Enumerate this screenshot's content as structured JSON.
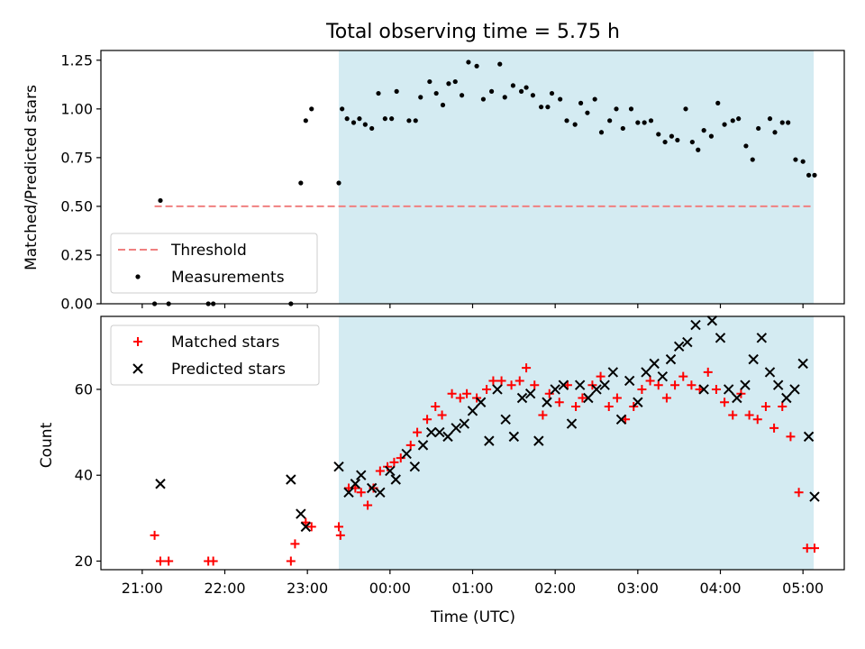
{
  "chart_data": [
    {
      "type": "scatter",
      "title": "Total observing time = 5.75 h",
      "ylabel": "Matched/Predicted stars",
      "xlabel": "",
      "x_unit": "hours since 00:00 UTC (negative = previous evening)",
      "ylim": [
        0,
        1.3
      ],
      "yticks": [
        0.0,
        0.25,
        0.5,
        0.75,
        1.0,
        1.25
      ],
      "ytick_labels": [
        "0.00",
        "0.25",
        "0.50",
        "0.75",
        "1.00",
        "1.25"
      ],
      "shaded_span": [
        -0.62,
        5.13
      ],
      "threshold": {
        "name": "Threshold",
        "value": 0.5,
        "x_range": [
          -2.85,
          5.13
        ],
        "color": "#f08080"
      },
      "legend": {
        "position": "lower-left",
        "entries": [
          "Threshold",
          "Measurements"
        ]
      },
      "series": [
        {
          "name": "Measurements",
          "color": "#000000",
          "x": [
            -2.85,
            -2.78,
            -2.68,
            -2.2,
            -2.14,
            -1.2,
            -1.08,
            -1.02,
            -0.95,
            -0.62,
            -0.58,
            -0.52,
            -0.44,
            -0.37,
            -0.3,
            -0.22,
            -0.14,
            -0.06,
            0.02,
            0.08,
            0.23,
            0.31,
            0.37,
            0.48,
            0.56,
            0.64,
            0.71,
            0.79,
            0.87,
            0.95,
            1.05,
            1.13,
            1.23,
            1.33,
            1.39,
            1.49,
            1.59,
            1.65,
            1.73,
            1.83,
            1.91,
            1.96,
            2.06,
            2.14,
            2.24,
            2.31,
            2.39,
            2.48,
            2.56,
            2.66,
            2.74,
            2.82,
            2.92,
            3.0,
            3.08,
            3.16,
            3.25,
            3.33,
            3.41,
            3.48,
            3.58,
            3.66,
            3.73,
            3.8,
            3.89,
            3.97,
            4.05,
            4.15,
            4.22,
            4.31,
            4.39,
            4.46,
            4.6,
            4.66,
            4.75,
            4.82,
            4.91,
            5.0,
            5.07,
            5.14
          ],
          "y": [
            0.0,
            0.53,
            0.0,
            0.0,
            0.0,
            0.0,
            0.62,
            0.94,
            1.0,
            0.62,
            1.0,
            0.95,
            0.93,
            0.95,
            0.92,
            0.9,
            1.08,
            0.95,
            0.95,
            1.09,
            0.94,
            0.94,
            1.06,
            1.14,
            1.08,
            1.02,
            1.13,
            1.14,
            1.07,
            1.24,
            1.22,
            1.05,
            1.09,
            1.23,
            1.06,
            1.12,
            1.09,
            1.11,
            1.07,
            1.01,
            1.01,
            1.08,
            1.05,
            0.94,
            0.92,
            1.03,
            0.98,
            1.05,
            0.88,
            0.94,
            1.0,
            0.9,
            1.0,
            0.93,
            0.93,
            0.94,
            0.87,
            0.83,
            0.86,
            0.84,
            1.0,
            0.83,
            0.79,
            0.89,
            0.86,
            1.03,
            0.92,
            0.94,
            0.95,
            0.81,
            0.74,
            0.9,
            0.95,
            0.88,
            0.93,
            0.93,
            0.74,
            0.73,
            0.66,
            0.66
          ]
        }
      ]
    },
    {
      "type": "scatter",
      "xlabel": "Time (UTC)",
      "ylabel": "Count",
      "ylim": [
        18,
        77
      ],
      "yticks": [
        20,
        40,
        60
      ],
      "ytick_labels": [
        "20",
        "40",
        "60"
      ],
      "xlim": [
        -3.5,
        5.5
      ],
      "xticks": [
        -3,
        -2,
        -1,
        0,
        1,
        2,
        3,
        4,
        5
      ],
      "xtick_labels": [
        "21:00",
        "22:00",
        "23:00",
        "00:00",
        "01:00",
        "02:00",
        "03:00",
        "04:00",
        "05:00"
      ],
      "shaded_span": [
        -0.62,
        5.13
      ],
      "legend": {
        "position": "upper-left",
        "entries": [
          "Matched stars",
          "Predicted stars"
        ]
      },
      "series": [
        {
          "name": "Matched stars",
          "marker": "+",
          "color": "#ff0000",
          "x": [
            -2.85,
            -2.78,
            -2.68,
            -2.2,
            -2.14,
            -1.2,
            -1.15,
            -1.02,
            -0.95,
            -0.62,
            -0.6,
            -0.5,
            -0.42,
            -0.35,
            -0.27,
            -0.2,
            -0.12,
            -0.03,
            0.05,
            0.13,
            0.25,
            0.33,
            0.45,
            0.55,
            0.63,
            0.75,
            0.85,
            0.93,
            1.05,
            1.17,
            1.25,
            1.35,
            1.47,
            1.57,
            1.65,
            1.75,
            1.85,
            1.93,
            2.05,
            2.15,
            2.25,
            2.33,
            2.45,
            2.55,
            2.65,
            2.75,
            2.85,
            2.95,
            3.05,
            3.15,
            3.25,
            3.35,
            3.45,
            3.55,
            3.65,
            3.75,
            3.85,
            3.95,
            4.05,
            4.15,
            4.25,
            4.35,
            4.45,
            4.55,
            4.65,
            4.75,
            4.85,
            4.95,
            5.05,
            5.14
          ],
          "y": [
            26,
            20,
            20,
            20,
            20,
            20,
            24,
            29,
            28,
            28,
            26,
            37,
            37,
            36,
            33,
            37,
            41,
            42,
            43,
            44,
            47,
            50,
            53,
            56,
            54,
            59,
            58,
            59,
            58,
            60,
            62,
            62,
            61,
            62,
            65,
            61,
            54,
            59,
            57,
            61,
            56,
            58,
            61,
            63,
            56,
            58,
            53,
            56,
            60,
            62,
            61,
            58,
            61,
            63,
            61,
            60,
            64,
            60,
            57,
            54,
            59,
            54,
            53,
            56,
            51,
            56,
            49,
            36,
            23,
            23
          ]
        },
        {
          "name": "Predicted stars",
          "marker": "x",
          "color": "#000000",
          "x": [
            -2.78,
            -1.2,
            -1.08,
            -1.02,
            -0.62,
            -0.5,
            -0.42,
            -0.35,
            -0.22,
            -0.12,
            0.0,
            0.07,
            0.2,
            0.3,
            0.4,
            0.5,
            0.6,
            0.7,
            0.8,
            0.9,
            1.0,
            1.1,
            1.2,
            1.3,
            1.4,
            1.5,
            1.6,
            1.7,
            1.8,
            1.9,
            2.0,
            2.1,
            2.2,
            2.3,
            2.4,
            2.5,
            2.6,
            2.7,
            2.8,
            2.9,
            3.0,
            3.1,
            3.2,
            3.3,
            3.4,
            3.5,
            3.6,
            3.7,
            3.8,
            3.9,
            4.0,
            4.1,
            4.2,
            4.3,
            4.4,
            4.5,
            4.6,
            4.7,
            4.8,
            4.9,
            5.0,
            5.07,
            5.14
          ],
          "y": [
            38,
            39,
            31,
            28,
            42,
            36,
            38,
            40,
            37,
            36,
            41,
            39,
            45,
            42,
            47,
            50,
            50,
            49,
            51,
            52,
            55,
            57,
            48,
            60,
            53,
            49,
            58,
            59,
            48,
            57,
            60,
            61,
            52,
            61,
            58,
            60,
            61,
            64,
            53,
            62,
            57,
            64,
            66,
            63,
            67,
            70,
            71,
            75,
            60,
            76,
            72,
            60,
            58,
            61,
            67,
            72,
            64,
            61,
            58,
            60,
            66,
            49,
            35
          ]
        }
      ]
    }
  ]
}
